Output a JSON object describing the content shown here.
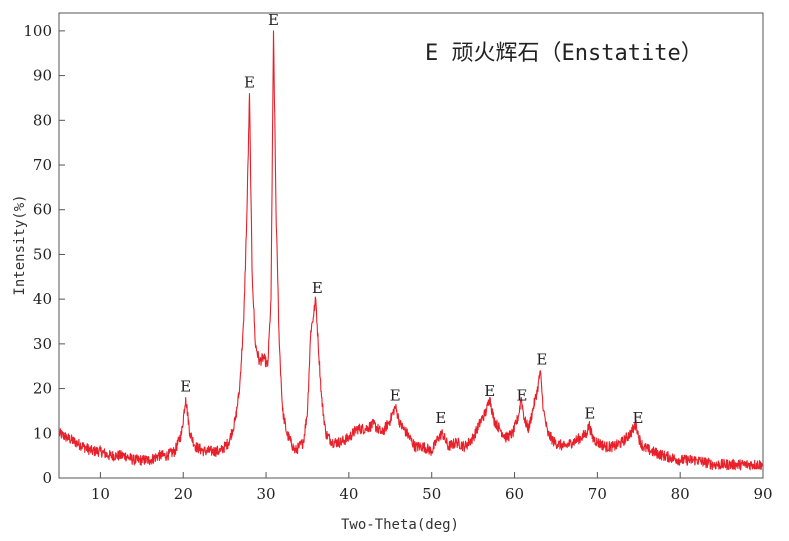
{
  "chart_data": {
    "type": "line",
    "title": "",
    "xlabel": "Two-Theta(deg)",
    "ylabel": "Intensity(%)",
    "xlim": [
      5,
      90
    ],
    "ylim": [
      0,
      104
    ],
    "x_ticks": [
      10,
      20,
      30,
      40,
      50,
      60,
      70,
      80,
      90
    ],
    "y_ticks": [
      0,
      10,
      20,
      30,
      40,
      50,
      60,
      70,
      80,
      90,
      100
    ],
    "grid": false,
    "line_color": "#e8202a",
    "legend": {
      "text": "E 顽火辉石（Enstatite）",
      "position": "top-right"
    },
    "series": [
      {
        "x": [
          5,
          6,
          7,
          8,
          9,
          10,
          11,
          12,
          13,
          14,
          15,
          16,
          17,
          18,
          19,
          19.8,
          20.3,
          20.8,
          21.5,
          22.5,
          23.5,
          24.5,
          25.5,
          26.3,
          26.8,
          27.3,
          27.7,
          28.0,
          28.3,
          28.7,
          29.2,
          29.7,
          30.2,
          30.6,
          30.9,
          31.2,
          31.6,
          32.0,
          32.5,
          33.0,
          33.5,
          34.0,
          34.5,
          35.0,
          35.4,
          35.7,
          36.0,
          36.3,
          36.7,
          37.2,
          38.0,
          39.0,
          40.0,
          41.0,
          42.0,
          43.0,
          44.0,
          45.0,
          45.6,
          46.2,
          47.0,
          48.0,
          49.0,
          50.0,
          50.8,
          51.3,
          52.0,
          53.0,
          54.0,
          55.0,
          56.0,
          56.6,
          57.0,
          57.5,
          58.2,
          59.0,
          59.8,
          60.5,
          60.8,
          61.2,
          61.7,
          62.3,
          62.8,
          63.1,
          63.5,
          64.0,
          64.8,
          66.0,
          67.0,
          68.0,
          68.7,
          69.0,
          69.4,
          70.0,
          71.0,
          72.0,
          73.0,
          74.0,
          74.7,
          75.0,
          75.5,
          76.5,
          78.0,
          80.0,
          82.0,
          84.0,
          86.0,
          88.0,
          90.0
        ],
        "values": [
          10,
          9,
          8,
          7,
          6,
          6,
          5,
          5,
          5,
          4,
          4,
          4,
          5,
          5,
          6,
          10,
          18,
          10,
          7,
          6,
          6,
          6,
          8,
          13,
          20,
          35,
          60,
          86,
          47,
          30,
          26,
          27,
          25,
          40,
          100,
          60,
          30,
          15,
          10,
          8,
          6,
          7,
          8,
          15,
          33,
          36,
          40,
          30,
          18,
          10,
          8,
          8,
          9,
          11,
          11,
          12,
          10,
          13,
          16,
          12,
          10,
          7,
          7,
          6,
          9,
          10,
          7,
          8,
          7,
          9,
          13,
          15,
          18,
          13,
          11,
          9,
          10,
          14,
          18,
          13,
          11,
          16,
          20,
          24,
          15,
          10,
          8,
          7,
          8,
          9,
          10,
          12,
          9,
          8,
          7,
          7,
          8,
          10,
          12,
          9,
          7,
          6,
          5,
          4,
          4,
          3,
          3,
          3,
          3
        ]
      }
    ],
    "peak_labels": [
      {
        "text": "E",
        "x": 20.3,
        "y": 18
      },
      {
        "text": "E",
        "x": 28.0,
        "y": 86
      },
      {
        "text": "E",
        "x": 30.9,
        "y": 100
      },
      {
        "text": "E",
        "x": 36.2,
        "y": 40
      },
      {
        "text": "E",
        "x": 45.6,
        "y": 16
      },
      {
        "text": "E",
        "x": 51.1,
        "y": 11
      },
      {
        "text": "E",
        "x": 57.0,
        "y": 17
      },
      {
        "text": "E",
        "x": 60.9,
        "y": 16
      },
      {
        "text": "E",
        "x": 63.3,
        "y": 24
      },
      {
        "text": "E",
        "x": 69.1,
        "y": 12
      },
      {
        "text": "E",
        "x": 74.9,
        "y": 11
      }
    ]
  }
}
